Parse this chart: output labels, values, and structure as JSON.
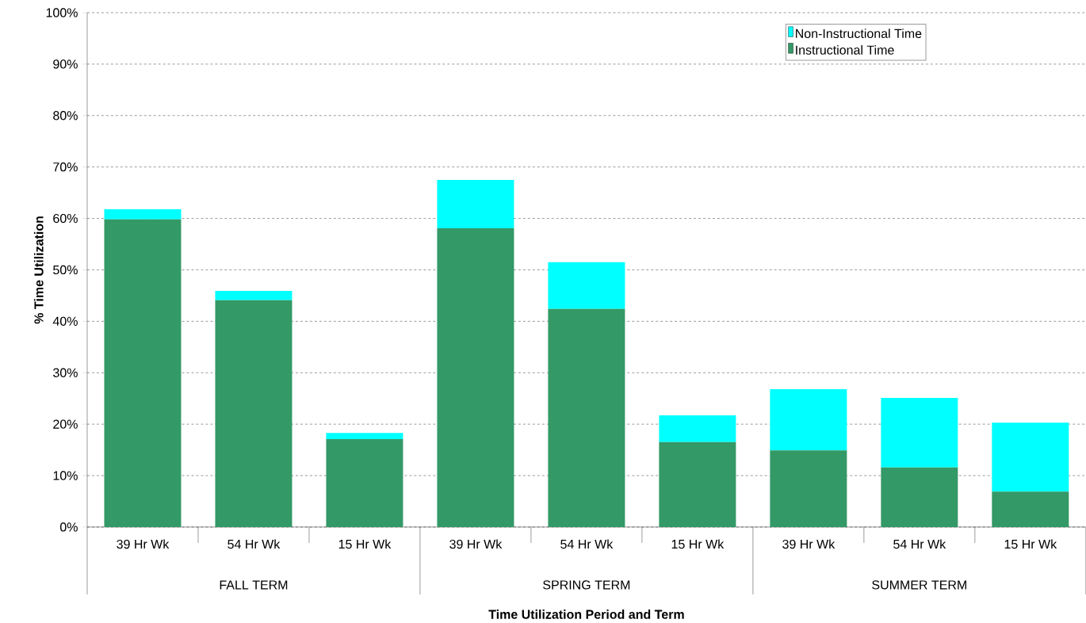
{
  "chart_data": {
    "type": "bar",
    "stacked": true,
    "xlabel": "Time Utilization Period and Term",
    "ylabel": "% Time Utilization",
    "categories": [
      "39 Hr Wk",
      "54 Hr Wk",
      "15 Hr Wk",
      "39 Hr Wk",
      "54 Hr Wk",
      "15 Hr Wk",
      "39 Hr Wk",
      "54 Hr Wk",
      "15 Hr Wk"
    ],
    "annotations": [
      "FALL TERM",
      "SPRING TERM",
      "SUMMER TERM"
    ],
    "series": [
      {
        "name": "Instructional Time",
        "color": "#339966",
        "values": [
          59.8,
          44.1,
          17.1,
          58.1,
          42.4,
          16.5,
          14.9,
          11.6,
          6.9
        ]
      },
      {
        "name": "Non-Instructional Time",
        "color": "#00ffff",
        "values": [
          2.0,
          1.8,
          1.2,
          9.4,
          9.1,
          5.2,
          11.9,
          13.5,
          13.4
        ]
      }
    ],
    "ylim": [
      0,
      100
    ],
    "yticks": [
      {
        "value": 0,
        "label": "0%"
      },
      {
        "value": 10,
        "label": "10%"
      },
      {
        "value": 20,
        "label": "20%"
      },
      {
        "value": 30,
        "label": "30%"
      },
      {
        "value": 40,
        "label": "40%"
      },
      {
        "value": 50,
        "label": "50%"
      },
      {
        "value": 60,
        "label": "60%"
      },
      {
        "value": 70,
        "label": "70%"
      },
      {
        "value": 80,
        "label": "80%"
      },
      {
        "value": 90,
        "label": "90%"
      },
      {
        "value": 100,
        "label": "100%"
      }
    ],
    "grid": "y",
    "legend": "top right"
  }
}
